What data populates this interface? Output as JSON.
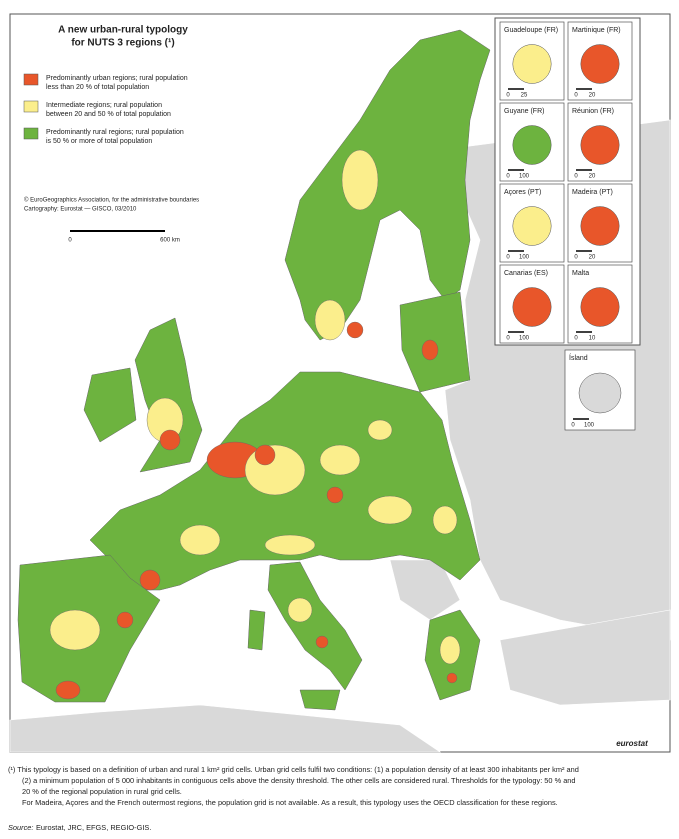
{
  "map": {
    "title_lines": [
      "A new urban-rural typology",
      "for NUTS 3 regions (¹)"
    ],
    "legend": [
      {
        "color": "#e8562a",
        "lines": [
          "Predominantly urban regions; rural population",
          "less than 20 % of total population"
        ]
      },
      {
        "color": "#fbee8c",
        "lines": [
          "Intermediate regions; rural population",
          "between 20 and 50 % of total population"
        ]
      },
      {
        "color": "#6db33f",
        "lines": [
          "Predominantly rural regions; rural population",
          "is 50 % or more of total population"
        ]
      }
    ],
    "credits": [
      "© EuroGeographics Association, for the administrative boundaries",
      "Cartography: Eurostat — GISCO, 03/2010"
    ],
    "scale_labels": [
      "0",
      "600 km"
    ],
    "insets": [
      {
        "name": "Guadeloupe (FR)",
        "scale": [
          "0",
          "25"
        ]
      },
      {
        "name": "Martinique (FR)",
        "scale": [
          "0",
          "20"
        ]
      },
      {
        "name": "Guyane (FR)",
        "scale": [
          "0",
          "100"
        ]
      },
      {
        "name": "Réunion (FR)",
        "scale": [
          "0",
          "20"
        ]
      },
      {
        "name": "Açores (PT)",
        "scale": [
          "0",
          "100"
        ]
      },
      {
        "name": "Madeira (PT)",
        "scale": [
          "0",
          "20"
        ]
      },
      {
        "name": "Canarias (ES)",
        "scale": [
          "0",
          "100"
        ]
      },
      {
        "name": "Malta",
        "scale": [
          "0",
          "10"
        ]
      },
      {
        "name": "Ísland",
        "scale": [
          "0",
          "100"
        ]
      }
    ],
    "logo": "eurostat"
  },
  "footnote": {
    "lines": [
      "(¹) This typology is based on a definition of urban and rural 1 km² grid cells. Urban grid cells fulfil two conditions: (1) a population density of at least 300 inhabitants per km² and",
      "(2) a minimum population of 5 000 inhabitants in contiguous cells above the density threshold. The other cells are considered rural. Thresholds for the typology: 50 % and",
      "20 % of the regional population in rural grid cells.",
      "For Madeira, Açores and the French outermost regions, the population grid is not available. As a result, this typology uses the OECD classification for these regions."
    ],
    "source_label": "Source:",
    "source": "Eurostat, JRC, EFGS, REGIO-GIS."
  }
}
